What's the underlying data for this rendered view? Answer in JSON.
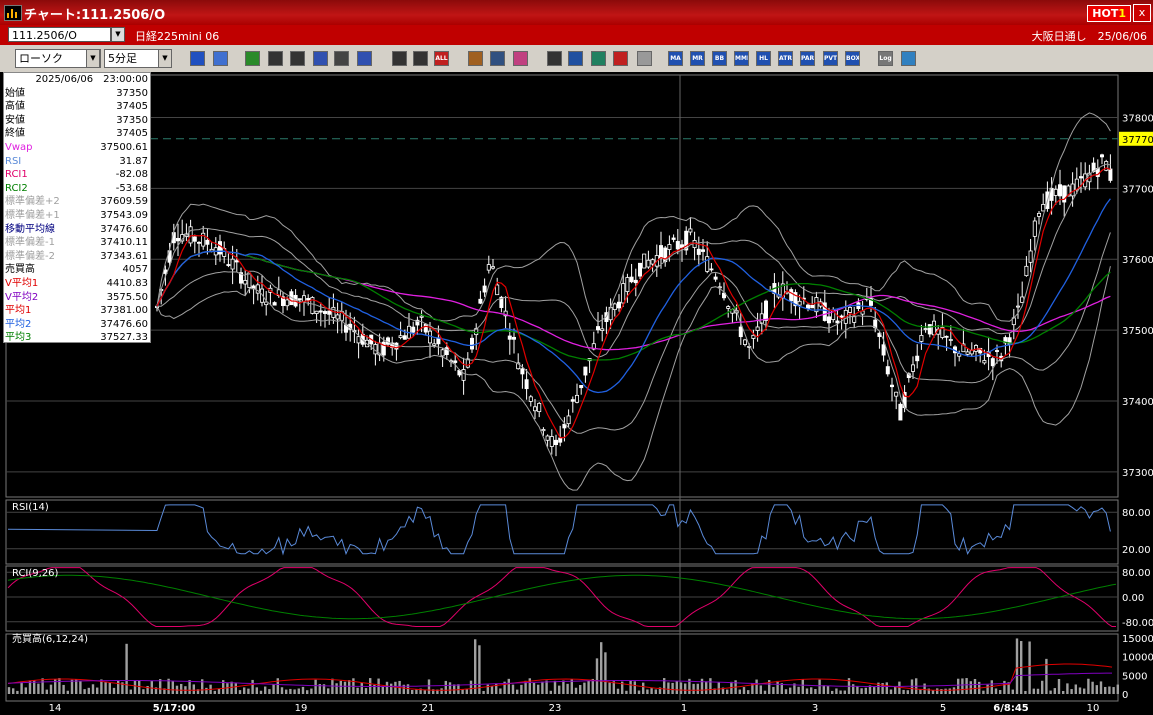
{
  "window": {
    "title": "チャート:111.2506/O",
    "hot_badge_prefix": "HOT",
    "hot_badge_num": "1",
    "close_label": "x"
  },
  "infobar": {
    "symbol": "111.2506/O",
    "product": "日経225mini 06",
    "session": "大阪日通し　25/06/06"
  },
  "toolbar": {
    "chart_type": "ローソク",
    "interval": "5分足",
    "buttons": [
      "search-icon",
      "window-icon",
      "pen-icon",
      "fib-icon",
      "cursor-icon",
      "undo-icon",
      "memo-icon",
      "trash-icon",
      "candle-a-icon",
      "candle-b-icon",
      "ALL",
      "gear-icon",
      "wrench-icon",
      "palette-icon",
      "print-icon",
      "zoom-icon",
      "grid-icon",
      "cross-icon",
      "flag-icon",
      "MA",
      "MR",
      "BB",
      "MME",
      "HL",
      "ATR",
      "PAR",
      "PVT",
      "BOX",
      "Log",
      "split-icon"
    ]
  },
  "info_panel": {
    "datetime": "2025/06/06　23:00:00",
    "rows": [
      {
        "label": "始値",
        "value": "37350",
        "color": "#000000"
      },
      {
        "label": "高値",
        "value": "37405",
        "color": "#000000"
      },
      {
        "label": "安値",
        "value": "37350",
        "color": "#000000"
      },
      {
        "label": "終値",
        "value": "37405",
        "color": "#000000"
      },
      {
        "label": "Vwap",
        "value": "37500.61",
        "color": "#e020e0"
      },
      {
        "label": "RSI",
        "value": "31.87",
        "color": "#5a8ad8"
      },
      {
        "label": "RCI1",
        "value": "-82.08",
        "color": "#e0006a"
      },
      {
        "label": "RCI2",
        "value": "-53.68",
        "color": "#008000"
      },
      {
        "label": "標準偏差+2",
        "value": "37609.59",
        "color": "#a0a0a0"
      },
      {
        "label": "標準偏差+1",
        "value": "37543.09",
        "color": "#a0a0a0"
      },
      {
        "label": "移動平均線",
        "value": "37476.60",
        "color": "#000080"
      },
      {
        "label": "標準偏差-1",
        "value": "37410.11",
        "color": "#a0a0a0"
      },
      {
        "label": "標準偏差-2",
        "value": "37343.61",
        "color": "#a0a0a0"
      },
      {
        "label": "売買高",
        "value": "4057",
        "color": "#000000"
      },
      {
        "label": "V平均1",
        "value": "4410.83",
        "color": "#e00000"
      },
      {
        "label": "V平均2",
        "value": "3575.50",
        "color": "#8000c0"
      },
      {
        "label": "平均1",
        "value": "37381.00",
        "color": "#e00000"
      },
      {
        "label": "平均2",
        "value": "37476.60",
        "color": "#2060e0"
      },
      {
        "label": "平均3",
        "value": "37527.33",
        "color": "#008000"
      }
    ]
  },
  "price_axis": {
    "ticks": [
      "37800",
      "37700",
      "37600",
      "37500",
      "37400",
      "37300"
    ],
    "current_price": "37770"
  },
  "panes": {
    "rsi": {
      "label": "RSI(14)",
      "ticks": [
        "80.00",
        "20.00"
      ]
    },
    "rci": {
      "label": "RCI(9,26)",
      "ticks": [
        "80.00",
        "0.00",
        "-80.00"
      ]
    },
    "volume": {
      "label": "売買高(6,12,24)",
      "ticks": [
        "15000",
        "10000",
        "5000",
        "0"
      ]
    }
  },
  "x_axis": {
    "labels": [
      "14",
      "5/17:00",
      "19",
      "21",
      "23",
      "1",
      "3",
      "5",
      "6/8:45",
      "10"
    ]
  },
  "colors": {
    "background": "#000000",
    "candle": "#ffffff",
    "avg1": "#e00000",
    "avg2": "#2060e0",
    "avg3": "#008000",
    "vwap": "#e020e0",
    "band": "#a0a0a0",
    "rsi": "#5a8ad8",
    "rci1": "#e0006a",
    "rci2": "#008000",
    "volume": "#a0a0a0"
  }
}
